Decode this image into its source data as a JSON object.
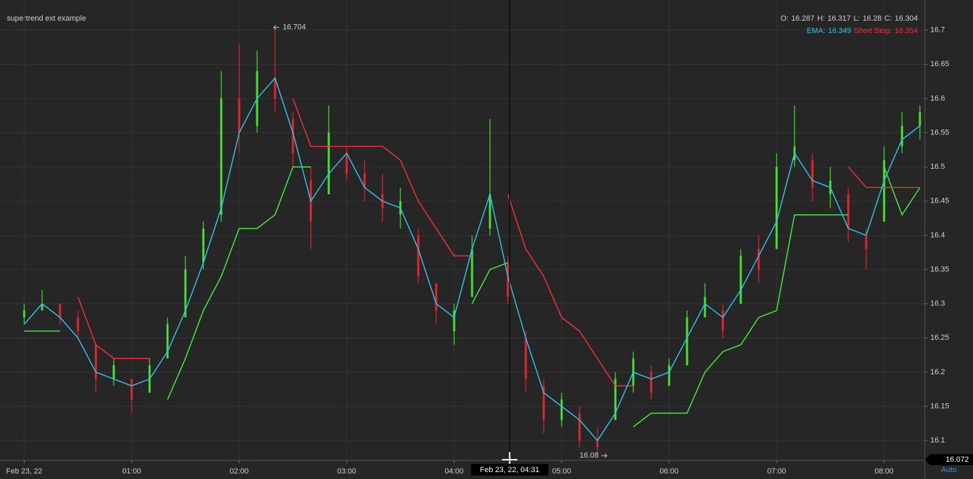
{
  "chart_data": {
    "type": "ohlc",
    "title": "supertrend ext example",
    "x": [
      0,
      10,
      20,
      30,
      40,
      50,
      60,
      70,
      80,
      90,
      100,
      110,
      120,
      130,
      140,
      150,
      160,
      170,
      180,
      190,
      200,
      210,
      220,
      230,
      240,
      250,
      260,
      270,
      280,
      290,
      300,
      310,
      320,
      330,
      340,
      350,
      360,
      370,
      380,
      390,
      400,
      410,
      420,
      430,
      440,
      450,
      460,
      470,
      480,
      490,
      500
    ],
    "open": [
      16.28,
      16.29,
      16.3,
      16.28,
      16.24,
      16.19,
      16.19,
      16.17,
      16.22,
      16.28,
      16.36,
      16.43,
      16.6,
      16.56,
      16.63,
      16.57,
      16.48,
      16.46,
      16.52,
      16.49,
      16.46,
      16.43,
      16.4,
      16.33,
      16.26,
      16.31,
      16.41,
      16.36,
      16.25,
      16.18,
      16.13,
      16.14,
      16.1,
      16.13,
      16.18,
      16.2,
      16.18,
      16.21,
      16.28,
      16.29,
      16.3,
      16.38,
      16.38,
      16.51,
      16.51,
      16.46,
      16.46,
      16.4,
      16.42,
      16.53,
      16.56
    ],
    "high": [
      16.3,
      16.32,
      16.3,
      16.29,
      16.24,
      16.22,
      16.19,
      16.22,
      16.28,
      16.37,
      16.42,
      16.64,
      16.68,
      16.67,
      16.704,
      16.58,
      16.5,
      16.59,
      16.53,
      16.51,
      16.49,
      16.47,
      16.41,
      16.33,
      16.3,
      16.4,
      16.57,
      16.37,
      16.26,
      16.19,
      16.17,
      16.15,
      16.12,
      16.2,
      16.23,
      16.21,
      16.22,
      16.29,
      16.33,
      16.3,
      16.38,
      16.4,
      16.52,
      16.59,
      16.52,
      16.5,
      16.47,
      16.41,
      16.53,
      16.58,
      16.59
    ],
    "low": [
      16.27,
      16.29,
      16.27,
      16.25,
      16.17,
      16.18,
      16.14,
      16.17,
      16.22,
      16.28,
      16.35,
      16.42,
      16.52,
      16.55,
      16.58,
      16.5,
      16.38,
      16.46,
      16.48,
      16.45,
      16.42,
      16.41,
      16.33,
      16.27,
      16.24,
      16.31,
      16.4,
      16.3,
      16.17,
      16.11,
      16.12,
      16.09,
      16.08,
      16.13,
      16.17,
      16.16,
      16.18,
      16.21,
      16.28,
      16.25,
      16.3,
      16.33,
      16.38,
      16.5,
      16.45,
      16.44,
      16.39,
      16.35,
      16.42,
      16.52,
      16.54
    ],
    "close": [
      16.29,
      16.3,
      16.28,
      16.26,
      16.19,
      16.21,
      16.16,
      16.21,
      16.27,
      16.35,
      16.41,
      16.6,
      16.55,
      16.64,
      16.6,
      16.52,
      16.42,
      16.55,
      16.49,
      16.47,
      16.44,
      16.45,
      16.34,
      16.29,
      16.29,
      16.38,
      16.46,
      16.31,
      16.19,
      16.13,
      16.16,
      16.1,
      16.09,
      16.19,
      16.22,
      16.17,
      16.21,
      16.28,
      16.31,
      16.26,
      16.37,
      16.35,
      16.5,
      16.53,
      16.47,
      16.48,
      16.41,
      16.38,
      16.51,
      16.56,
      16.58
    ],
    "up_color": "#44e62e",
    "down_color": "#e8242f",
    "ema": {
      "color": "#2fc3f0",
      "values": [
        16.27,
        16.3,
        16.28,
        16.25,
        16.2,
        16.19,
        16.18,
        16.19,
        16.23,
        16.29,
        16.36,
        16.44,
        16.55,
        16.6,
        16.63,
        16.55,
        16.45,
        16.49,
        16.52,
        16.47,
        16.45,
        16.44,
        16.38,
        16.3,
        16.28,
        16.38,
        16.46,
        16.34,
        16.25,
        16.17,
        16.15,
        16.13,
        16.1,
        16.14,
        16.2,
        16.19,
        16.2,
        16.25,
        16.3,
        16.28,
        16.32,
        16.37,
        16.42,
        16.52,
        16.48,
        16.47,
        16.41,
        16.4,
        16.48,
        16.54,
        16.56
      ]
    },
    "long_stop": {
      "color": "#3cf23c",
      "values": [
        16.26,
        16.26,
        16.26,
        null,
        null,
        null,
        null,
        null,
        16.16,
        16.22,
        16.29,
        16.34,
        16.41,
        16.41,
        16.43,
        16.5,
        16.5,
        null,
        null,
        null,
        null,
        null,
        null,
        null,
        null,
        16.3,
        16.35,
        16.36,
        null,
        null,
        null,
        null,
        null,
        null,
        16.12,
        16.14,
        16.14,
        16.14,
        16.2,
        16.23,
        16.24,
        16.28,
        16.29,
        16.43,
        16.43,
        16.43,
        16.43,
        null,
        16.5,
        16.43,
        16.47
      ]
    },
    "short_stop": {
      "color": "#ff2a3a",
      "values": [
        null,
        null,
        null,
        16.31,
        16.24,
        16.22,
        16.22,
        16.22,
        null,
        null,
        null,
        null,
        null,
        null,
        null,
        16.6,
        16.53,
        16.53,
        16.53,
        16.53,
        16.53,
        16.51,
        16.45,
        16.41,
        16.37,
        16.37,
        null,
        16.46,
        16.38,
        16.34,
        16.28,
        16.26,
        16.22,
        16.18,
        16.18,
        null,
        null,
        null,
        null,
        null,
        null,
        null,
        null,
        null,
        null,
        null,
        16.5,
        16.47,
        16.47,
        16.47,
        16.47
      ]
    },
    "xlim": [
      -13.5,
      502.7
    ],
    "ylim": [
      16.071,
      16.744
    ],
    "xticks": [
      {
        "value": 0,
        "label": "Feb 23, 22"
      },
      {
        "value": 60,
        "label": "01:00"
      },
      {
        "value": 120,
        "label": "02:00"
      },
      {
        "value": 180,
        "label": "03:00"
      },
      {
        "value": 240,
        "label": "04:00"
      },
      {
        "value": 300,
        "label": "05:00"
      },
      {
        "value": 360,
        "label": "06:00"
      },
      {
        "value": 420,
        "label": "07:00"
      },
      {
        "value": 480,
        "label": "08:00"
      }
    ],
    "yticks": [
      16.1,
      16.15,
      16.2,
      16.25,
      16.3,
      16.35,
      16.4,
      16.45,
      16.5,
      16.55,
      16.6,
      16.65,
      16.7
    ],
    "grid": true,
    "high_marker": {
      "x": 137,
      "value": 16.704
    },
    "low_marker": {
      "x": 316,
      "value": 16.08
    },
    "ohlc_legend": [
      {
        "label": "O:",
        "value": 16.287
      },
      {
        "label": "H:",
        "value": 16.317
      },
      {
        "label": "L:",
        "value": 16.28
      },
      {
        "label": "C:",
        "value": 16.304
      }
    ],
    "ema_legend": {
      "label": "EMA:",
      "value": 16.349
    },
    "short_stop_legend": {
      "label": "Short Stop:",
      "value": 16.354
    },
    "crosshair": {
      "x": {
        "value": 271,
        "label": "Feb 23, 22, 04:31"
      },
      "y": 16.072
    },
    "scale_mode": "Auto"
  }
}
